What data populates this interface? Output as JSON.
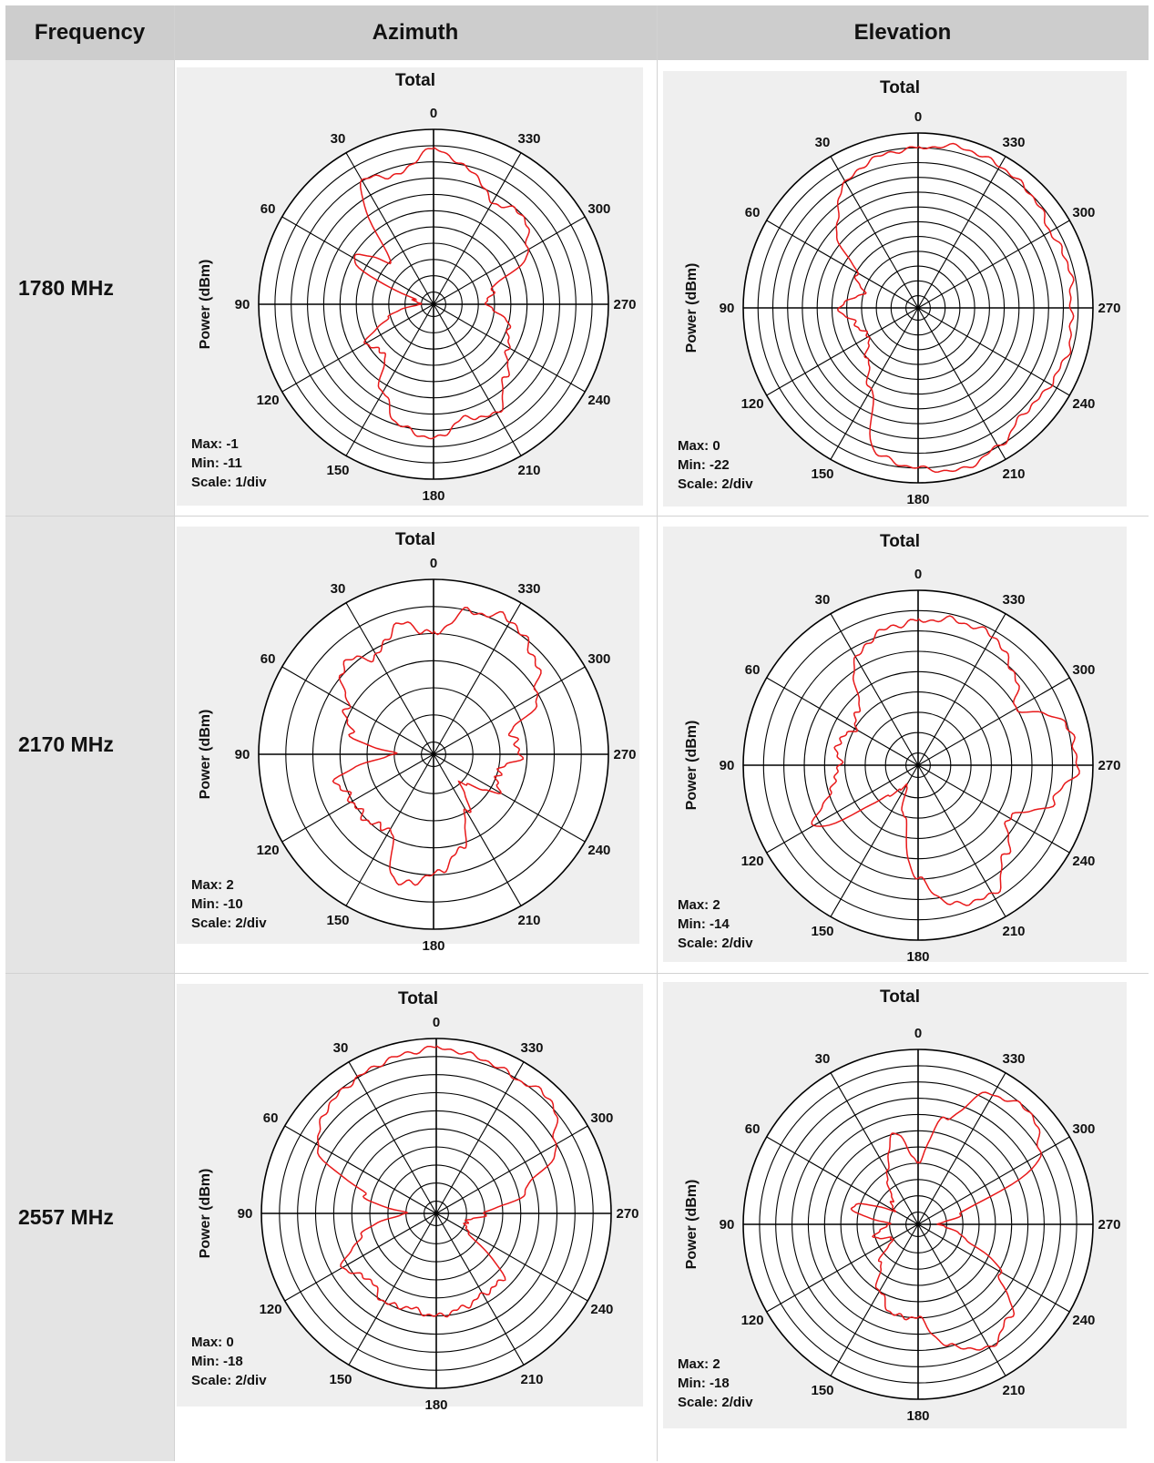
{
  "table": {
    "headers": [
      "Frequency",
      "Azimuth",
      "Elevation"
    ],
    "rows": [
      {
        "frequency": "1780 MHz"
      },
      {
        "frequency": "2170 MHz"
      },
      {
        "frequency": "2557 MHz"
      }
    ]
  },
  "chart_data": [
    {
      "id": "az-1780",
      "type": "polar",
      "title": "Total",
      "ylabel": "Power (dBm)",
      "angle_labels": [
        "0",
        "30",
        "60",
        "90",
        "120",
        "150",
        "180",
        "210",
        "240",
        "270",
        "300",
        "330"
      ],
      "max_label": "Max: -1",
      "min_label": "Min: -11",
      "scale_label": "Scale: 1/div",
      "max": -1,
      "min": -11,
      "scale": 1,
      "rings": 10,
      "grid": true,
      "line_color": "#e8191a",
      "pattern_angles_deg": [
        0,
        15,
        30,
        45,
        60,
        75,
        90,
        105,
        120,
        135,
        150,
        165,
        180,
        195,
        210,
        225,
        240,
        255,
        270,
        285,
        300,
        315,
        330,
        345
      ],
      "pattern_dBm": [
        -2.2,
        -3.5,
        -3.0,
        -8.0,
        -6.0,
        -10.5,
        -11.0,
        -9.0,
        -7.0,
        -7.5,
        -5.5,
        -4.0,
        -3.5,
        -4.5,
        -4.0,
        -5.5,
        -6.5,
        -7.0,
        -8.5,
        -8.0,
        -5.0,
        -4.0,
        -4.5,
        -3.2
      ]
    },
    {
      "id": "el-1780",
      "type": "polar",
      "title": "Total",
      "ylabel": "Power (dBm)",
      "angle_labels": [
        "0",
        "30",
        "60",
        "90",
        "120",
        "150",
        "180",
        "210",
        "240",
        "270",
        "300",
        "330"
      ],
      "max_label": "Max: 0",
      "min_label": "Min: -22",
      "scale_label": "Scale: 2/div",
      "max": 0,
      "min": -22,
      "scale": 2,
      "rings": 11,
      "grid": true,
      "line_color": "#e8191a",
      "pattern_angles_deg": [
        0,
        15,
        30,
        45,
        60,
        75,
        90,
        105,
        120,
        135,
        150,
        165,
        180,
        195,
        210,
        225,
        240,
        255,
        270,
        285,
        300,
        315,
        330,
        345
      ],
      "pattern_dBm": [
        -2.0,
        -2.5,
        -4.0,
        -8.0,
        -14.0,
        -16.0,
        -13.0,
        -15.0,
        -16.0,
        -14.0,
        -11.0,
        -3.0,
        -2.0,
        -1.0,
        -2.0,
        -3.5,
        -3.0,
        -2.5,
        -3.0,
        -2.5,
        -3.0,
        -2.0,
        -1.5,
        -1.2
      ]
    },
    {
      "id": "az-2170",
      "type": "polar",
      "title": "Total",
      "ylabel": "Power (dBm)",
      "angle_labels": [
        "0",
        "30",
        "60",
        "90",
        "120",
        "150",
        "180",
        "210",
        "240",
        "270",
        "300",
        "330"
      ],
      "max_label": "Max: 2",
      "min_label": "Min: -10",
      "scale_label": "Scale: 2/div",
      "max": 2,
      "min": -10,
      "scale": 2,
      "rings": 6,
      "grid": true,
      "line_color": "#e8191a",
      "pattern_angles_deg": [
        0,
        15,
        30,
        45,
        60,
        75,
        90,
        105,
        120,
        135,
        150,
        165,
        180,
        195,
        210,
        225,
        240,
        255,
        270,
        285,
        300,
        315,
        330,
        345
      ],
      "pattern_dBm": [
        -2.0,
        -1.0,
        -2.5,
        -1.5,
        -3.5,
        -4.5,
        -8.0,
        -3.5,
        -4.0,
        -4.0,
        -4.5,
        -1.0,
        -2.0,
        -3.5,
        -6.0,
        -8.0,
        -5.5,
        -6.0,
        -4.5,
        -5.0,
        -2.0,
        -0.5,
        0.5,
        0.0
      ]
    },
    {
      "id": "el-2170",
      "type": "polar",
      "title": "Total",
      "ylabel": "Power (dBm)",
      "angle_labels": [
        "0",
        "30",
        "60",
        "90",
        "120",
        "150",
        "180",
        "210",
        "240",
        "270",
        "300",
        "330"
      ],
      "max_label": "Max: 2",
      "min_label": "Min: -14",
      "scale_label": "Scale: 2/div",
      "max": 2,
      "min": -14,
      "scale": 2,
      "rings": 8,
      "grid": true,
      "line_color": "#e8191a",
      "pattern_angles_deg": [
        0,
        15,
        30,
        45,
        60,
        75,
        90,
        105,
        120,
        135,
        150,
        165,
        180,
        195,
        210,
        225,
        240,
        255,
        270,
        285,
        300,
        315,
        330,
        345
      ],
      "pattern_dBm": [
        -1.0,
        -1.5,
        -3.0,
        -7.0,
        -8.0,
        -7.0,
        -7.5,
        -6.5,
        -3.5,
        -11.0,
        -13.0,
        -10.0,
        -4.0,
        -1.0,
        -0.5,
        -3.0,
        -5.0,
        -1.5,
        0.5,
        0.0,
        -4.0,
        -2.0,
        -0.5,
        -0.5
      ]
    },
    {
      "id": "az-2557",
      "type": "polar",
      "title": "Total",
      "ylabel": "Power (dBm)",
      "angle_labels": [
        "0",
        "30",
        "60",
        "90",
        "120",
        "150",
        "180",
        "210",
        "240",
        "270",
        "300",
        "330"
      ],
      "max_label": "Max: 0",
      "min_label": "Min: -18",
      "scale_label": "Scale: 2/div",
      "max": 0,
      "min": -18,
      "scale": 2,
      "rings": 9,
      "grid": true,
      "line_color": "#e8191a",
      "pattern_angles_deg": [
        0,
        15,
        30,
        45,
        60,
        75,
        90,
        105,
        120,
        135,
        150,
        165,
        180,
        195,
        210,
        225,
        240,
        255,
        270,
        285,
        300,
        315,
        330,
        345
      ],
      "pattern_dBm": [
        -1.0,
        -1.5,
        -2.0,
        -2.5,
        -4.0,
        -11.0,
        -16.0,
        -11.0,
        -7.5,
        -9.0,
        -8.0,
        -8.5,
        -8.0,
        -8.5,
        -9.0,
        -9.0,
        -15.5,
        -16.0,
        -14.0,
        -9.0,
        -4.0,
        -1.5,
        -2.0,
        -1.5
      ]
    },
    {
      "id": "el-2557",
      "type": "polar",
      "title": "Total",
      "ylabel": "Power (dBm)",
      "angle_labels": [
        "0",
        "30",
        "60",
        "90",
        "120",
        "150",
        "180",
        "210",
        "240",
        "270",
        "300",
        "330"
      ],
      "max_label": "Max: 2",
      "min_label": "Min: -18",
      "scale_label": "Scale: 2/div",
      "max": 2,
      "min": -18,
      "scale": 2,
      "rings": 10,
      "grid": true,
      "line_color": "#e8191a",
      "pattern_angles_deg": [
        0,
        15,
        30,
        45,
        60,
        75,
        90,
        105,
        120,
        135,
        150,
        165,
        180,
        195,
        210,
        225,
        240,
        255,
        270,
        285,
        300,
        315,
        330,
        345
      ],
      "pattern_dBm": [
        -12.0,
        -8.0,
        -12.0,
        -15.0,
        -16.0,
        -11.0,
        -16.0,
        -14.0,
        -16.0,
        -13.0,
        -10.0,
        -8.0,
        -8.0,
        -4.0,
        -2.0,
        -3.5,
        -8.0,
        -14.0,
        -17.0,
        -14.0,
        -2.0,
        0.0,
        -1.0,
        -6.0
      ]
    }
  ]
}
